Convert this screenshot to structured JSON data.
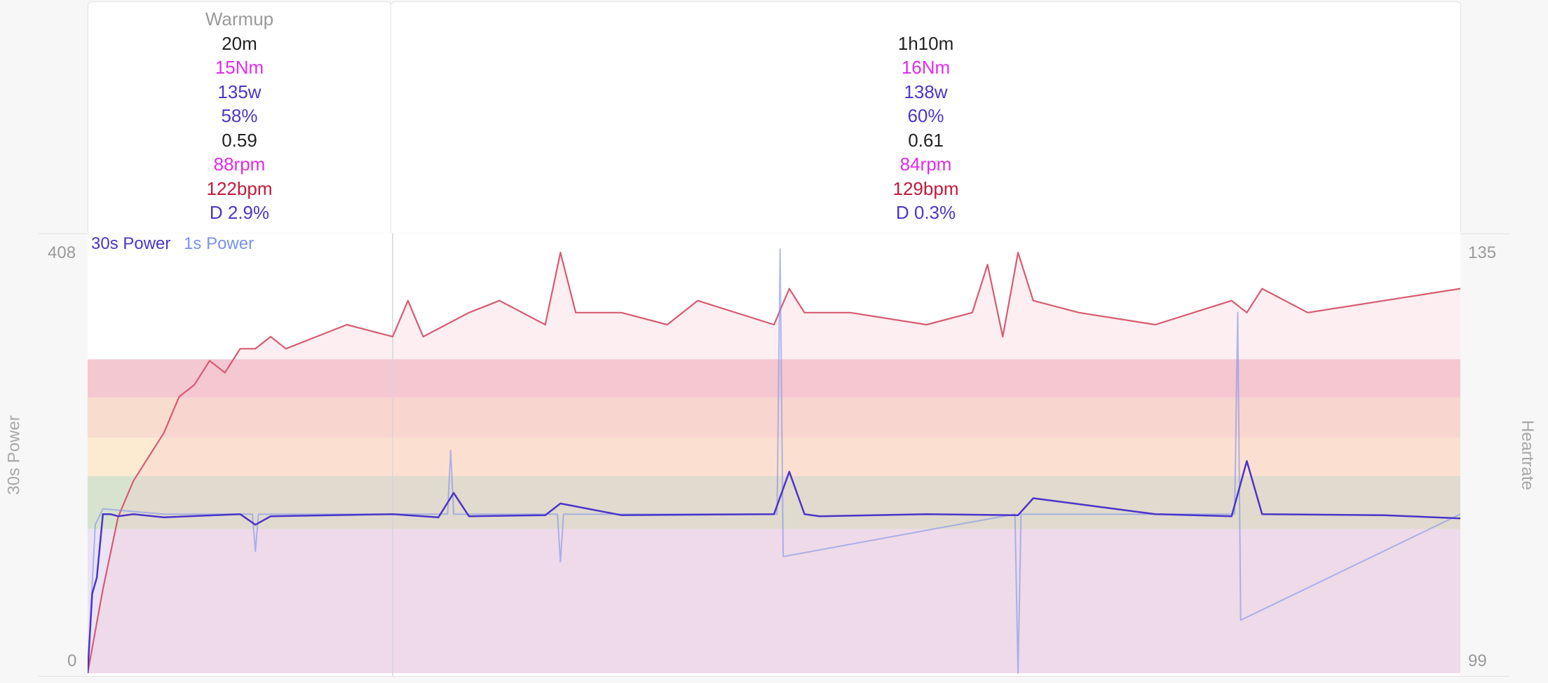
{
  "intervals": [
    {
      "title": "Warmup",
      "duration": "20m",
      "torque": "15Nm",
      "power": "135w",
      "percent": "58%",
      "intensity": "0.59",
      "cadence": "88rpm",
      "heartrate": "122bpm",
      "decoupling": "D 2.9%"
    },
    {
      "title": "",
      "duration": "1h10m",
      "torque": "16Nm",
      "power": "138w",
      "percent": "60%",
      "intensity": "0.61",
      "cadence": "84rpm",
      "heartrate": "129bpm",
      "decoupling": "D 0.3%"
    }
  ],
  "chart_data": {
    "type": "line",
    "y_left_label": "30s Power",
    "y_right_label": "Heartrate",
    "y_left_ticks": [
      "408",
      "0"
    ],
    "y_right_ticks": [
      "135",
      "99"
    ],
    "ylim_left": [
      0,
      408
    ],
    "ylim_right": [
      99,
      135
    ],
    "x_range_minutes": [
      0,
      90
    ],
    "interval_boundary_minute": 20,
    "legend": [
      {
        "name": "30s Power",
        "color": "#4a35c8"
      },
      {
        "name": "1s Power",
        "color": "#7b93e8"
      }
    ],
    "zones_watts": [
      {
        "from": 0,
        "to": 136,
        "color": "#ebe3f4"
      },
      {
        "from": 136,
        "to": 186,
        "color": "#d7e3cf"
      },
      {
        "from": 186,
        "to": 222,
        "color": "#fcebd1"
      },
      {
        "from": 222,
        "to": 260,
        "color": "#f8dcce"
      },
      {
        "from": 260,
        "to": 296,
        "color": "#f3c8d1"
      }
    ],
    "series": [
      {
        "name": "30s Power",
        "color": "#4a35c8",
        "x_minutes": [
          0,
          0.3,
          0.6,
          1,
          1.5,
          2,
          3,
          5,
          10,
          11,
          12,
          20,
          23,
          24,
          25,
          30,
          31,
          35,
          45,
          46,
          47,
          48,
          55,
          61,
          62,
          70,
          75,
          76,
          77,
          85,
          90
        ],
        "values": [
          0,
          75,
          90,
          150,
          150,
          148,
          150,
          147,
          150,
          140,
          148,
          150,
          147,
          170,
          148,
          149,
          160,
          149,
          150,
          190,
          150,
          148,
          150,
          149,
          165,
          150,
          148,
          200,
          150,
          149,
          146
        ]
      },
      {
        "name": "1s Power",
        "color": "#7b93e8",
        "x_minutes": [
          0,
          0.5,
          1,
          5,
          10.8,
          11,
          11.2,
          20,
          23.6,
          23.8,
          24,
          30,
          30.8,
          31,
          31.2,
          45.2,
          45.4,
          45.6,
          60.8,
          61,
          61.2,
          75.2,
          75.4,
          75.6,
          90
        ],
        "values": [
          0,
          140,
          155,
          150,
          150,
          115,
          150,
          150,
          150,
          210,
          150,
          150,
          150,
          105,
          150,
          150,
          400,
          110,
          150,
          0,
          150,
          150,
          340,
          50,
          150
        ]
      },
      {
        "name": "Heartrate",
        "color": "#d65c72",
        "axis": "right",
        "x_minutes": [
          0,
          1,
          2,
          3,
          4,
          5,
          6,
          7,
          8,
          9,
          10,
          11,
          12,
          13,
          15,
          17,
          20,
          21,
          22,
          25,
          27,
          30,
          31,
          32,
          35,
          38,
          40,
          45,
          46,
          47,
          50,
          55,
          58,
          59,
          60,
          61,
          62,
          65,
          70,
          75,
          76,
          77,
          80,
          85,
          90
        ],
        "values": [
          99,
          106,
          112,
          115,
          117,
          119,
          122,
          123,
          125,
          124,
          126,
          126,
          127,
          126,
          127,
          128,
          127,
          130,
          127,
          129,
          130,
          128,
          134,
          129,
          129,
          128,
          130,
          128,
          131,
          129,
          129,
          128,
          129,
          133,
          127,
          134,
          130,
          129,
          128,
          130,
          129,
          131,
          129,
          130,
          131
        ]
      }
    ]
  }
}
